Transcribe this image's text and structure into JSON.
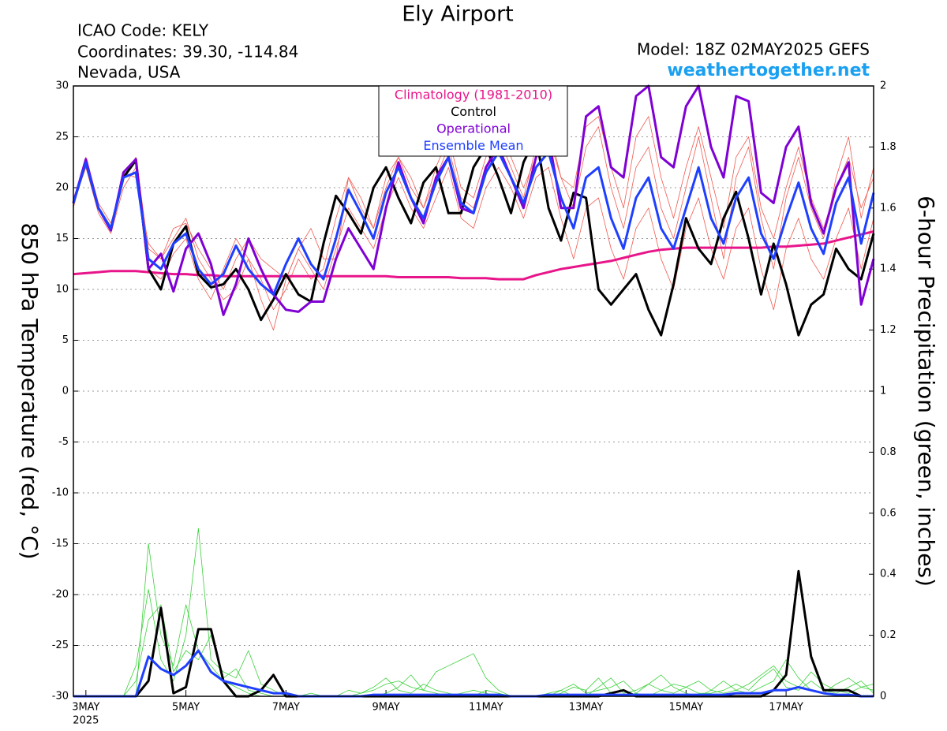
{
  "header": {
    "icao": "ICAO Code: KELY",
    "coords": "Coordinates: 39.30, -114.84",
    "region": "Nevada, USA",
    "model": "Model: 18Z 02MAY2025 GEFS",
    "site": "weathertogether.net"
  },
  "chart_data": {
    "type": "line",
    "title": "Ely Airport",
    "y_label": "850 hPa Temperature (red, °C)",
    "y2_label": "6-hour Precipitation (green, inches)",
    "year_label": "2025",
    "x": [
      2.75,
      3,
      3.25,
      3.5,
      3.75,
      4,
      4.25,
      4.5,
      4.75,
      5,
      5.25,
      5.5,
      5.75,
      6,
      6.25,
      6.5,
      6.75,
      7,
      7.25,
      7.5,
      7.75,
      8,
      8.25,
      8.5,
      8.75,
      9,
      9.25,
      9.5,
      9.75,
      10,
      10.25,
      10.5,
      10.75,
      11,
      11.25,
      11.5,
      11.75,
      12,
      12.25,
      12.5,
      12.75,
      13,
      13.25,
      13.5,
      13.75,
      14,
      14.25,
      14.5,
      14.75,
      15,
      15.25,
      15.5,
      15.75,
      16,
      16.25,
      16.5,
      16.75,
      17,
      17.25,
      17.5,
      17.75,
      18,
      18.25,
      18.5,
      18.75
    ],
    "xlim": [
      2.75,
      18.75
    ],
    "xticks": [
      {
        "value": 3,
        "label": "3MAY"
      },
      {
        "value": 5,
        "label": "5MAY"
      },
      {
        "value": 7,
        "label": "7MAY"
      },
      {
        "value": 9,
        "label": "9MAY"
      },
      {
        "value": 11,
        "label": "11MAY"
      },
      {
        "value": 13,
        "label": "13MAY"
      },
      {
        "value": 15,
        "label": "15MAY"
      },
      {
        "value": 17,
        "label": "17MAY"
      }
    ],
    "ylim": [
      -30,
      30
    ],
    "yticks": [
      -30,
      -25,
      -20,
      -15,
      -10,
      -5,
      0,
      5,
      10,
      15,
      20,
      25,
      30
    ],
    "y2lim": [
      0,
      2
    ],
    "y2ticks": [
      0,
      0.2,
      0.4,
      0.6,
      0.8,
      1,
      1.2,
      1.4,
      1.6,
      1.8,
      2
    ],
    "grid": true,
    "series": [
      {
        "color": "#f05a50",
        "width": 0.8,
        "values": [
          18,
          23,
          18.5,
          16.5,
          21,
          23,
          14,
          13,
          15,
          17,
          13,
          11,
          9,
          10,
          13,
          11,
          8,
          10,
          13,
          11,
          12,
          17,
          21,
          18,
          16,
          21,
          23,
          20,
          18,
          21,
          24,
          19,
          18,
          22,
          25,
          22,
          19,
          24,
          26,
          21,
          18,
          24,
          26,
          20,
          16,
          22,
          24,
          18,
          15,
          20,
          25,
          19,
          13,
          21,
          24,
          17,
          12,
          19,
          23,
          18,
          15,
          21,
          25,
          17,
          22
        ]
      },
      {
        "color": "#f05a50",
        "width": 0.8,
        "values": [
          19,
          22,
          17.5,
          15.5,
          20,
          22,
          12,
          11,
          13.5,
          15,
          11,
          9,
          12,
          15,
          13,
          9,
          6,
          11,
          14,
          12,
          10,
          14,
          18,
          16,
          14,
          18,
          21,
          18,
          16,
          19,
          22,
          17,
          16,
          20,
          22,
          20,
          17,
          21,
          22,
          17,
          13,
          18,
          19,
          14,
          11,
          16,
          18,
          13,
          10,
          16,
          19,
          14,
          11,
          16,
          18,
          12,
          8,
          14,
          17,
          13,
          11,
          15,
          18,
          12,
          17
        ]
      },
      {
        "color": "#f05a50",
        "width": 0.8,
        "values": [
          18.5,
          22,
          18,
          16,
          21.5,
          21,
          14.5,
          13,
          16,
          16.5,
          14,
          12,
          10,
          13,
          15,
          13,
          12,
          11,
          14,
          16,
          13,
          13,
          21,
          19,
          16,
          20,
          23,
          21,
          18,
          22,
          25,
          20,
          19,
          23,
          26,
          23,
          20,
          23,
          25,
          21,
          20,
          26,
          27,
          22,
          18,
          25,
          27,
          21,
          17,
          22,
          26,
          21,
          16,
          23,
          25,
          18,
          15,
          20,
          24,
          19,
          16,
          20,
          23,
          18,
          21
        ]
      },
      {
        "color": "#3ad13a",
        "width": 0.8,
        "axis": "y2",
        "values": [
          0,
          0,
          0,
          0,
          0,
          0,
          0.5,
          0.2,
          0.1,
          0.3,
          0.15,
          0.1,
          0.05,
          0.03,
          0.01,
          0,
          0,
          0,
          0,
          0,
          0,
          0,
          0,
          0.01,
          0.02,
          0.04,
          0.05,
          0.03,
          0.02,
          0.08,
          0.1,
          0.12,
          0.14,
          0.06,
          0.02,
          0,
          0,
          0,
          0.01,
          0.02,
          0,
          0,
          0.03,
          0.06,
          0.01,
          0.02,
          0.04,
          0.02,
          0.01,
          0.03,
          0.05,
          0.02,
          0.01,
          0.02,
          0.04,
          0.07,
          0.1,
          0.05,
          0.03,
          0.08,
          0.04,
          0.02,
          0.01,
          0.03,
          0.02
        ]
      },
      {
        "color": "#3ad13a",
        "width": 0.8,
        "axis": "y2",
        "values": [
          0,
          0,
          0,
          0,
          0,
          0.1,
          0.35,
          0.12,
          0.05,
          0.2,
          0.55,
          0.12,
          0.08,
          0.06,
          0.15,
          0.04,
          0.02,
          0,
          0,
          0,
          0,
          0,
          0,
          0,
          0,
          0.01,
          0.03,
          0.07,
          0.02,
          0.01,
          0,
          0.01,
          0.02,
          0.01,
          0,
          0,
          0,
          0,
          0,
          0.01,
          0.03,
          0.02,
          0.06,
          0.01,
          0,
          0.01,
          0.04,
          0.07,
          0.03,
          0.01,
          0,
          0.02,
          0.05,
          0.02,
          0.01,
          0.03,
          0.05,
          0.12,
          0.06,
          0.02,
          0.01,
          0.04,
          0.06,
          0.03,
          0.04
        ]
      },
      {
        "color": "#3ad13a",
        "width": 0.8,
        "axis": "y2",
        "values": [
          0,
          0,
          0,
          0,
          0,
          0.05,
          0.25,
          0.3,
          0.08,
          0.15,
          0.12,
          0.2,
          0.06,
          0.09,
          0.02,
          0.01,
          0,
          0,
          0,
          0.01,
          0,
          0,
          0.02,
          0.01,
          0.03,
          0.06,
          0.02,
          0.01,
          0.04,
          0.02,
          0.01,
          0,
          0,
          0.02,
          0.01,
          0,
          0,
          0,
          0,
          0.02,
          0.04,
          0.01,
          0.02,
          0.03,
          0.05,
          0.01,
          0,
          0.02,
          0.04,
          0.03,
          0.01,
          0.01,
          0.02,
          0.04,
          0.02,
          0.06,
          0.09,
          0.03,
          0.02,
          0.05,
          0.02,
          0.01,
          0.03,
          0.05,
          0.01
        ]
      },
      {
        "name": "Climatology (1981-2010)",
        "color": "#e8158a",
        "width": 3,
        "values": [
          11.5,
          11.6,
          11.7,
          11.8,
          11.8,
          11.8,
          11.7,
          11.6,
          11.5,
          11.5,
          11.4,
          11.4,
          11.3,
          11.3,
          11.3,
          11.3,
          11.3,
          11.3,
          11.3,
          11.3,
          11.3,
          11.3,
          11.3,
          11.3,
          11.3,
          11.3,
          11.2,
          11.2,
          11.2,
          11.2,
          11.2,
          11.1,
          11.1,
          11.1,
          11.0,
          11.0,
          11.0,
          11.4,
          11.7,
          12.0,
          12.2,
          12.4,
          12.6,
          12.8,
          13.1,
          13.4,
          13.7,
          13.9,
          14.0,
          14.1,
          14.1,
          14.1,
          14.1,
          14.1,
          14.1,
          14.1,
          14.2,
          14.2,
          14.3,
          14.4,
          14.5,
          14.8,
          15.1,
          15.4,
          15.7
        ]
      },
      {
        "name": "Control",
        "color": "#000000",
        "width": 3,
        "values": [
          18.5,
          22.5,
          18,
          16,
          21,
          22.7,
          12,
          10,
          14.5,
          16.2,
          11.5,
          10.2,
          10.5,
          12,
          10,
          7,
          9,
          11.5,
          9.5,
          8.8,
          14.5,
          19.2,
          17.5,
          15.5,
          20,
          22,
          19,
          16.5,
          20.5,
          22,
          17.5,
          17.5,
          22,
          24,
          21,
          17.5,
          22.5,
          25,
          18,
          14.8,
          19.5,
          19,
          10,
          8.5,
          10,
          11.5,
          8,
          5.5,
          10.5,
          17,
          14,
          12.5,
          17,
          19.6,
          15,
          9.5,
          14.5,
          10.5,
          5.5,
          8.5,
          9.5,
          14,
          12,
          11,
          15.5
        ]
      },
      {
        "name": "Operational",
        "color": "#7f00d4",
        "width": 3,
        "values": [
          18.5,
          22.8,
          18,
          15.8,
          21.5,
          22.8,
          12,
          13.5,
          9.8,
          14,
          15.5,
          12.5,
          7.5,
          10.5,
          15,
          12,
          9.5,
          8,
          7.8,
          8.8,
          8.8,
          13,
          16,
          14,
          12,
          18,
          22.5,
          19,
          16.5,
          21,
          23,
          18,
          17.5,
          22,
          24,
          21,
          18,
          23,
          25,
          18,
          18,
          27,
          28,
          22,
          21,
          29,
          30,
          23,
          22,
          28,
          30,
          24,
          21,
          29,
          28.5,
          19.5,
          18.5,
          24,
          26,
          18.5,
          15.5,
          20,
          22.5,
          8.5,
          13
        ]
      },
      {
        "name": "Ensemble Mean",
        "color": "#1f3fff",
        "width": 3,
        "values": [
          18.5,
          22.5,
          18,
          16,
          21,
          21.5,
          13,
          12,
          14.5,
          15.5,
          12,
          10.5,
          11.5,
          14.3,
          12,
          10.5,
          9.5,
          12.5,
          15,
          12.5,
          11,
          15,
          19.8,
          17.5,
          15,
          19.5,
          22,
          19,
          17,
          20.5,
          23,
          18.5,
          17.5,
          21.5,
          23.5,
          21,
          18.5,
          22,
          23.5,
          19,
          16,
          21,
          22,
          17,
          14,
          19,
          21,
          16,
          14,
          18,
          22,
          17,
          14.5,
          19,
          21,
          15.5,
          13,
          17,
          20.5,
          16,
          13.5,
          18.5,
          21,
          14.5,
          19.5
        ]
      },
      {
        "color": "#000000",
        "width": 3,
        "axis": "y2",
        "values": [
          0,
          0,
          0,
          0,
          0,
          0,
          0.05,
          0.29,
          0.01,
          0.03,
          0.22,
          0.22,
          0.05,
          0,
          0,
          0.02,
          0.07,
          0,
          0,
          0,
          0,
          0,
          0,
          0,
          0,
          0,
          0,
          0,
          0,
          0,
          0,
          0,
          0,
          0,
          0,
          0,
          0,
          0,
          0,
          0,
          0,
          0,
          0,
          0.01,
          0.02,
          0,
          0,
          0,
          0,
          0,
          0,
          0,
          0,
          0,
          0,
          0,
          0.02,
          0.07,
          0.41,
          0.13,
          0.02,
          0.02,
          0.02,
          0,
          0
        ]
      },
      {
        "color": "#1f3fff",
        "width": 3,
        "axis": "y2",
        "values": [
          0,
          0,
          0,
          0,
          0,
          0,
          0.13,
          0.09,
          0.07,
          0.1,
          0.15,
          0.08,
          0.05,
          0.04,
          0.03,
          0.02,
          0.01,
          0.01,
          0,
          0,
          0,
          0,
          0,
          0,
          0.005,
          0.005,
          0.005,
          0.005,
          0.005,
          0.005,
          0.005,
          0.005,
          0.005,
          0.005,
          0.005,
          0,
          0,
          0,
          0.005,
          0.005,
          0.005,
          0.005,
          0.005,
          0.005,
          0.005,
          0.005,
          0.005,
          0.005,
          0.005,
          0.005,
          0.005,
          0.005,
          0.005,
          0.01,
          0.01,
          0.01,
          0.02,
          0.02,
          0.03,
          0.02,
          0.01,
          0.005,
          0.005,
          0,
          0
        ]
      }
    ]
  }
}
